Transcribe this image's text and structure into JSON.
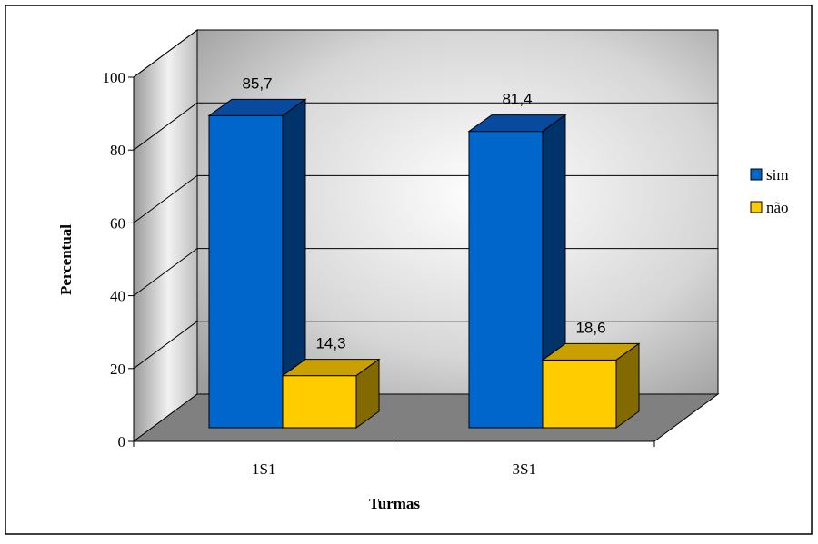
{
  "chart_data": {
    "type": "bar",
    "categories": [
      "1S1",
      "3S1"
    ],
    "series": [
      {
        "name": "sim",
        "values": [
          85.7,
          81.4
        ],
        "color": "#0066CC",
        "top_color": "#0A4A9E",
        "side_color": "#00336A"
      },
      {
        "name": "não",
        "values": [
          14.3,
          18.6
        ],
        "color": "#FFCC00",
        "top_color": "#C9A000",
        "side_color": "#826A00"
      }
    ],
    "data_labels": [
      "85,7",
      "14,3",
      "81,4",
      "18,6"
    ],
    "xlabel": "Turmas",
    "ylabel": "Percentual",
    "ylim": [
      0,
      100
    ],
    "yticks": [
      "0",
      "20",
      "40",
      "60",
      "80",
      "100"
    ],
    "grid": true,
    "legend_position": "right",
    "three_d": true
  }
}
